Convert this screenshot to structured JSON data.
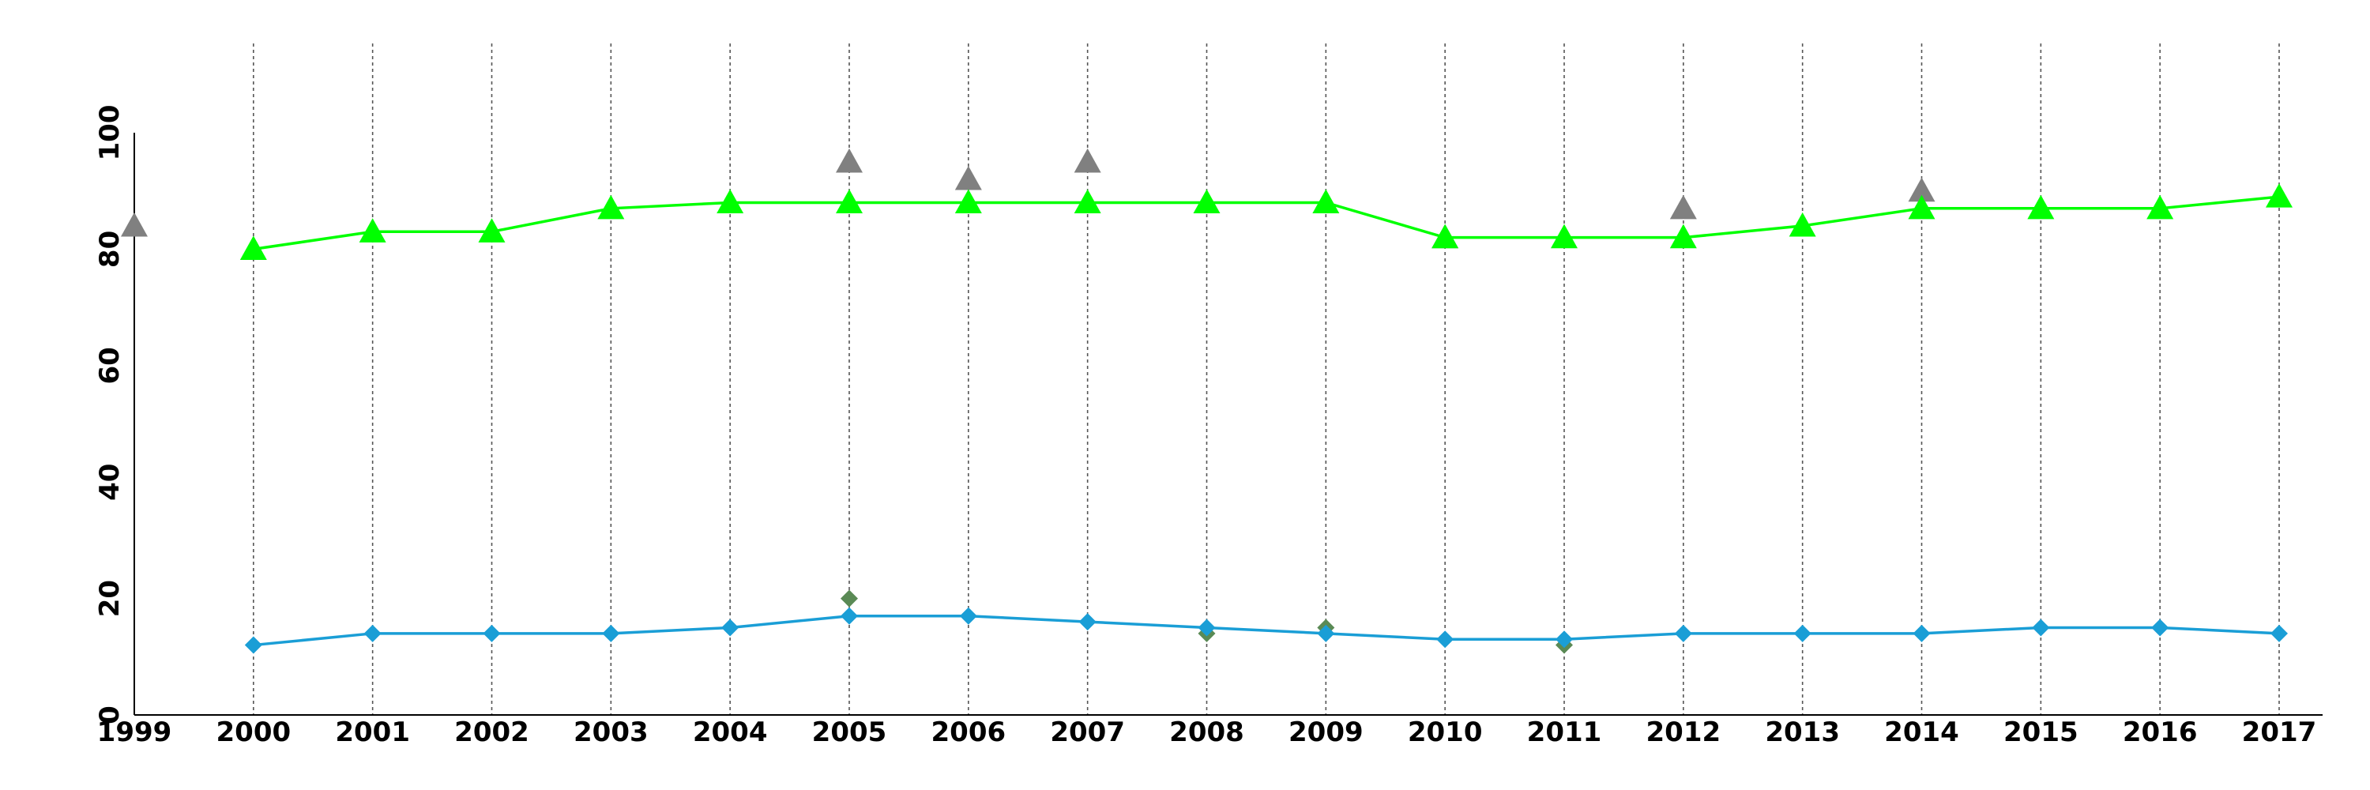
{
  "chart_data": {
    "type": "line",
    "title": "",
    "xlabel": "",
    "ylabel": "",
    "x": [
      1999,
      2000,
      2001,
      2002,
      2003,
      2004,
      2005,
      2006,
      2007,
      2008,
      2009,
      2010,
      2011,
      2012,
      2013,
      2014,
      2015,
      2016,
      2017
    ],
    "xlim": [
      1999,
      2017
    ],
    "ylim": [
      0,
      100
    ],
    "yticks": [
      0,
      20,
      40,
      60,
      80,
      100
    ],
    "grid": {
      "vertical": true,
      "horizontal": false,
      "style": "dotted"
    },
    "legend": "none",
    "series": [
      {
        "key": "upper-line",
        "kind": "line",
        "marker": "triangle",
        "color": "#00ff00",
        "values": [
          null,
          80,
          83,
          83,
          87,
          88,
          88,
          88,
          88,
          88,
          88,
          82,
          82,
          82,
          84,
          87,
          87,
          87,
          89
        ]
      },
      {
        "key": "upper-reference",
        "kind": "markers",
        "marker": "triangle",
        "color": "#808080",
        "values": [
          84,
          null,
          null,
          null,
          null,
          null,
          95,
          92,
          95,
          null,
          null,
          82,
          null,
          87,
          null,
          90,
          null,
          null,
          null
        ]
      },
      {
        "key": "lower-line",
        "kind": "line",
        "marker": "diamond",
        "color": "#1a9ed6",
        "values": [
          null,
          12,
          14,
          14,
          14,
          15,
          17,
          17,
          16,
          15,
          14,
          13,
          13,
          14,
          14,
          14,
          15,
          15,
          14
        ]
      },
      {
        "key": "lower-reference",
        "kind": "markers",
        "marker": "diamond",
        "color": "#5a8a55",
        "values": [
          null,
          null,
          null,
          null,
          null,
          null,
          20,
          null,
          null,
          14,
          15,
          null,
          12,
          null,
          null,
          null,
          null,
          null,
          null
        ]
      }
    ]
  }
}
